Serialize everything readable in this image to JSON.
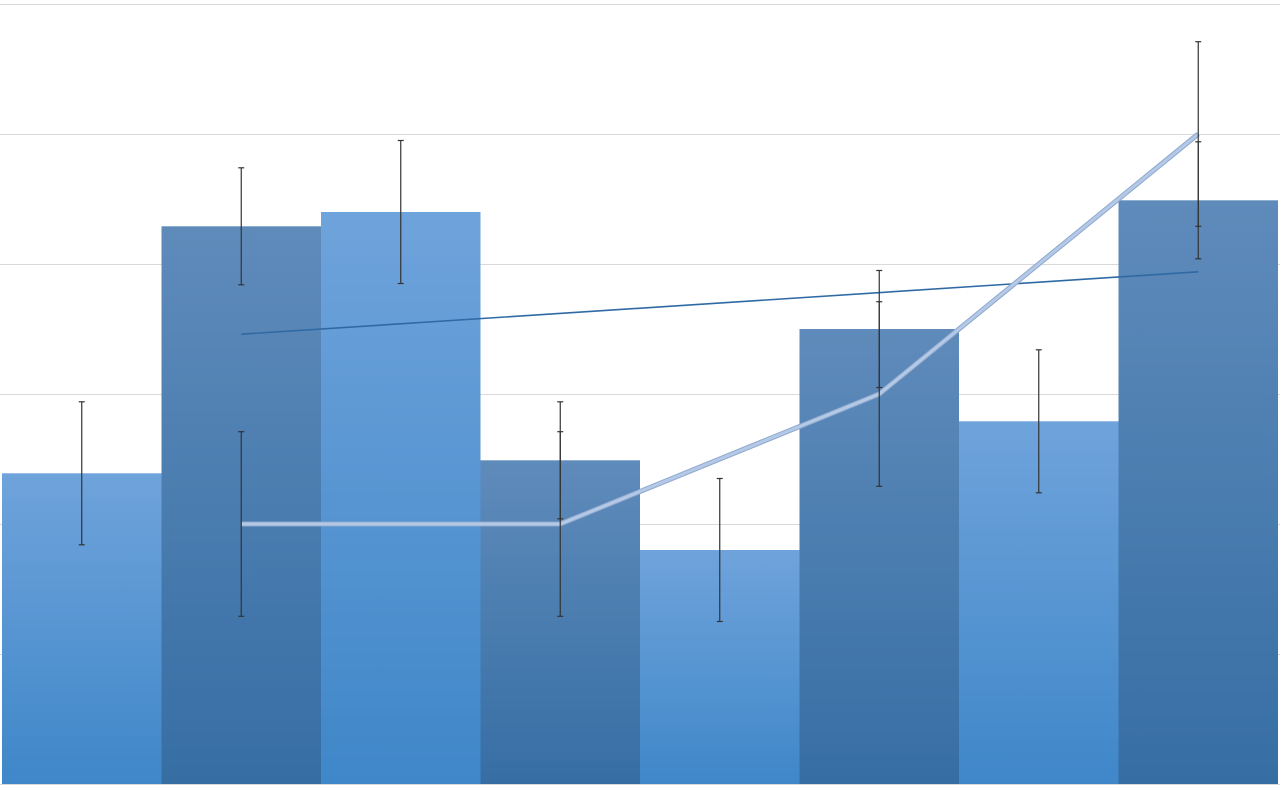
{
  "chart_data": {
    "type": "bar",
    "title": "",
    "xlabel": "",
    "ylabel": "",
    "ylim": [
      0,
      6
    ],
    "grid": true,
    "legend": "none",
    "categories": [
      "",
      "",
      "",
      "",
      "",
      "",
      "",
      ""
    ],
    "bars": {
      "values": [
        2.39,
        4.29,
        4.4,
        2.49,
        1.8,
        3.5,
        2.79,
        4.49
      ],
      "errors": [
        0.55,
        0.45,
        0.55,
        0.45,
        0.55,
        0.45,
        0.55,
        0.45
      ],
      "colors_light": [
        "#6fa3db",
        "#3f87c9"
      ],
      "colors_dark": [
        "#5f8bbb",
        "#366ea4"
      ]
    },
    "line": {
      "positions": [
        1.5,
        3.5,
        5.5,
        7.5
      ],
      "values": [
        2,
        2,
        3,
        5
      ],
      "errors": [
        0.71,
        0.71,
        0.71,
        0.71
      ],
      "color": "#b4c9e6"
    },
    "trendline": {
      "positions": [
        1.5,
        7.5
      ],
      "values": [
        3.46,
        3.94
      ],
      "color": "#2f6aa5"
    },
    "gridline_color": "#d9d9d9",
    "errorbar_color": "#333333"
  }
}
